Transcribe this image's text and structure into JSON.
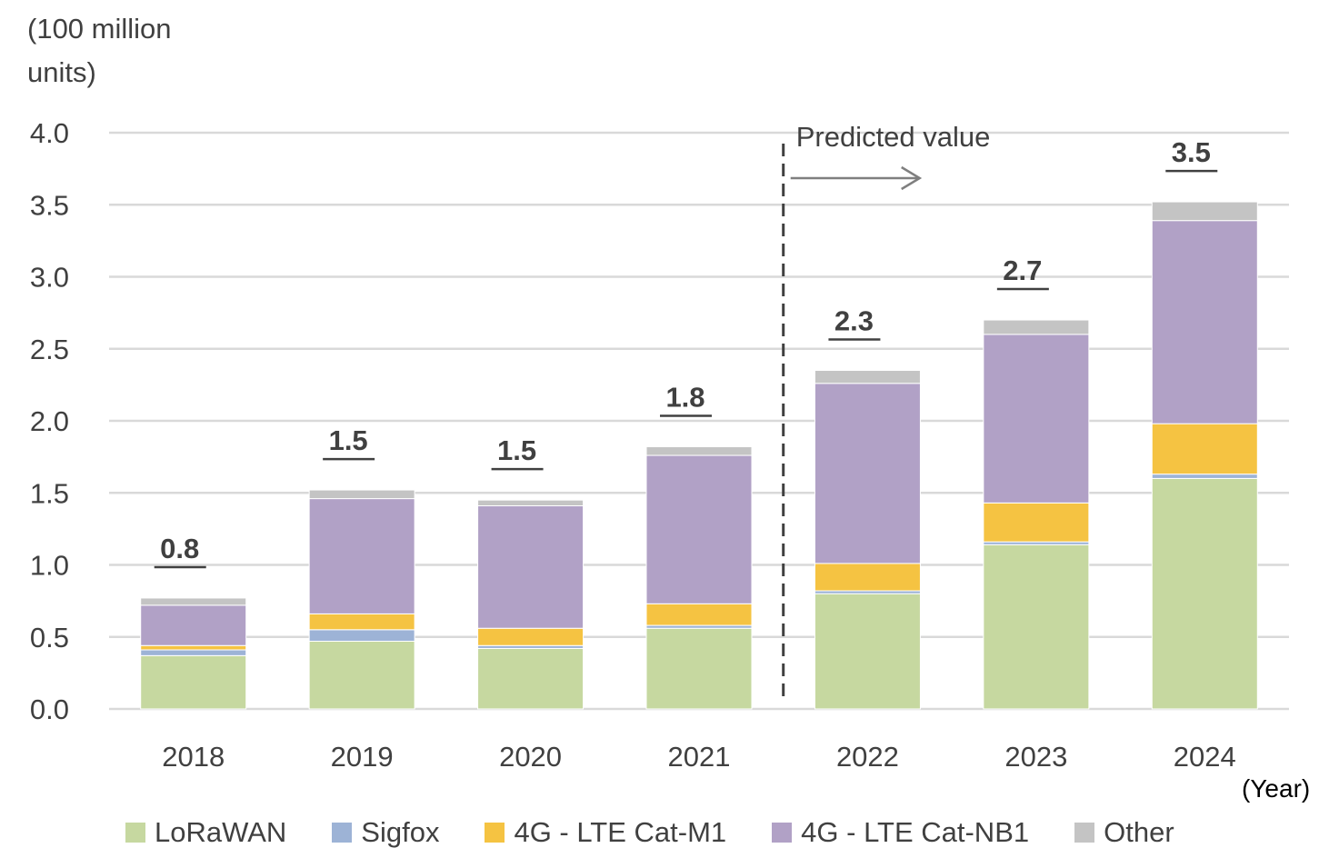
{
  "chart_data": {
    "type": "bar",
    "stacked": true,
    "unit_label": "(100 million units)",
    "x_unit_label": "(Year)",
    "categories": [
      "2018",
      "2019",
      "2020",
      "2021",
      "2022",
      "2023",
      "2024"
    ],
    "ylim": [
      0,
      4.0
    ],
    "yticks": [
      "0.0",
      "0.5",
      "1.0",
      "1.5",
      "2.0",
      "2.5",
      "3.0",
      "3.5",
      "4.0"
    ],
    "grid": true,
    "legend_position": "bottom",
    "series": [
      {
        "name": "LoRaWAN",
        "color": "#c6d8a0",
        "values": [
          0.37,
          0.47,
          0.42,
          0.56,
          0.8,
          1.14,
          1.6
        ]
      },
      {
        "name": "Sigfox",
        "color": "#9db3d6",
        "values": [
          0.04,
          0.08,
          0.02,
          0.02,
          0.02,
          0.02,
          0.03
        ]
      },
      {
        "name": "4G - LTE Cat-M1",
        "color": "#f5c342",
        "values": [
          0.03,
          0.11,
          0.12,
          0.15,
          0.19,
          0.27,
          0.35
        ]
      },
      {
        "name": "4G - LTE Cat-NB1",
        "color": "#b1a1c6",
        "values": [
          0.28,
          0.8,
          0.85,
          1.03,
          1.25,
          1.17,
          1.41
        ]
      },
      {
        "name": "Other",
        "color": "#c4c4c4",
        "values": [
          0.05,
          0.06,
          0.04,
          0.06,
          0.09,
          0.1,
          0.13
        ]
      }
    ],
    "totals": [
      "0.8",
      "1.5",
      "1.5",
      "1.8",
      "2.3",
      "2.7",
      "3.5"
    ],
    "annotation": "Predicted value",
    "divider_after_category": "2021"
  }
}
